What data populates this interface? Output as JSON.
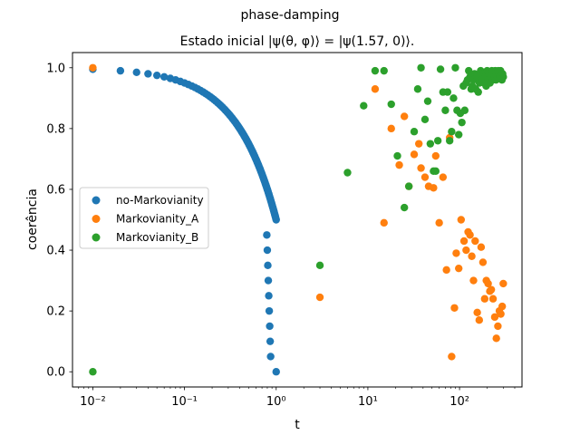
{
  "chart_data": {
    "type": "scatter",
    "suptitle": "phase-damping",
    "title": "Estado inicial |ψ(θ, φ)⟩ = |ψ(1.57, 0)⟩.",
    "xlabel": "t",
    "ylabel": "coerência",
    "xscale": "log",
    "xlim": [
      0.006,
      480
    ],
    "ylim": [
      -0.05,
      1.05
    ],
    "xticks": [
      0.01,
      0.1,
      1,
      10,
      100
    ],
    "xtick_labels": [
      "10⁻²",
      "10⁻¹",
      "10⁰",
      "10¹",
      "10²"
    ],
    "yticks": [
      0.0,
      0.2,
      0.4,
      0.6,
      0.8,
      1.0
    ],
    "ytick_labels": [
      "0.0",
      "0.2",
      "0.4",
      "0.6",
      "0.8",
      "1.0"
    ],
    "grid": false,
    "legend_position": "center-left",
    "series": [
      {
        "name": "no-Markovianity",
        "color": "#1f77b4",
        "points": [
          [
            0.01,
            0.995
          ],
          [
            0.02,
            0.99
          ],
          [
            0.03,
            0.985
          ],
          [
            0.04,
            0.98
          ],
          [
            0.05,
            0.975
          ],
          [
            0.06,
            0.97
          ],
          [
            0.07,
            0.965
          ],
          [
            0.08,
            0.96
          ],
          [
            0.09,
            0.955
          ],
          [
            0.1,
            0.95
          ],
          [
            0.11,
            0.945
          ],
          [
            0.12,
            0.94
          ],
          [
            0.13,
            0.935
          ],
          [
            0.14,
            0.93
          ],
          [
            0.15,
            0.925
          ],
          [
            0.16,
            0.92
          ],
          [
            0.17,
            0.915
          ],
          [
            0.18,
            0.91
          ],
          [
            0.19,
            0.905
          ],
          [
            0.2,
            0.9
          ],
          [
            0.21,
            0.895
          ],
          [
            0.22,
            0.89
          ],
          [
            0.23,
            0.885
          ],
          [
            0.24,
            0.88
          ],
          [
            0.25,
            0.875
          ],
          [
            0.26,
            0.87
          ],
          [
            0.27,
            0.865
          ],
          [
            0.28,
            0.86
          ],
          [
            0.29,
            0.855
          ],
          [
            0.3,
            0.85
          ],
          [
            0.31,
            0.845
          ],
          [
            0.32,
            0.84
          ],
          [
            0.33,
            0.835
          ],
          [
            0.34,
            0.83
          ],
          [
            0.35,
            0.825
          ],
          [
            0.36,
            0.82
          ],
          [
            0.37,
            0.815
          ],
          [
            0.38,
            0.81
          ],
          [
            0.39,
            0.805
          ],
          [
            0.4,
            0.8
          ],
          [
            0.41,
            0.795
          ],
          [
            0.42,
            0.79
          ],
          [
            0.43,
            0.785
          ],
          [
            0.44,
            0.78
          ],
          [
            0.45,
            0.775
          ],
          [
            0.46,
            0.77
          ],
          [
            0.47,
            0.765
          ],
          [
            0.48,
            0.76
          ],
          [
            0.49,
            0.755
          ],
          [
            0.5,
            0.75
          ],
          [
            0.51,
            0.745
          ],
          [
            0.52,
            0.74
          ],
          [
            0.53,
            0.735
          ],
          [
            0.54,
            0.73
          ],
          [
            0.55,
            0.725
          ],
          [
            0.56,
            0.72
          ],
          [
            0.57,
            0.715
          ],
          [
            0.58,
            0.71
          ],
          [
            0.59,
            0.705
          ],
          [
            0.6,
            0.7
          ],
          [
            0.61,
            0.695
          ],
          [
            0.62,
            0.69
          ],
          [
            0.63,
            0.685
          ],
          [
            0.64,
            0.68
          ],
          [
            0.65,
            0.675
          ],
          [
            0.66,
            0.67
          ],
          [
            0.67,
            0.665
          ],
          [
            0.68,
            0.66
          ],
          [
            0.69,
            0.655
          ],
          [
            0.7,
            0.65
          ],
          [
            0.71,
            0.645
          ],
          [
            0.72,
            0.64
          ],
          [
            0.73,
            0.635
          ],
          [
            0.74,
            0.63
          ],
          [
            0.75,
            0.625
          ],
          [
            0.76,
            0.62
          ],
          [
            0.77,
            0.615
          ],
          [
            0.78,
            0.61
          ],
          [
            0.79,
            0.605
          ],
          [
            0.8,
            0.6
          ],
          [
            0.81,
            0.595
          ],
          [
            0.82,
            0.59
          ],
          [
            0.83,
            0.585
          ],
          [
            0.84,
            0.58
          ],
          [
            0.85,
            0.575
          ],
          [
            0.86,
            0.57
          ],
          [
            0.87,
            0.565
          ],
          [
            0.88,
            0.56
          ],
          [
            0.89,
            0.555
          ],
          [
            0.9,
            0.55
          ],
          [
            0.91,
            0.545
          ],
          [
            0.92,
            0.54
          ],
          [
            0.93,
            0.535
          ],
          [
            0.94,
            0.53
          ],
          [
            0.95,
            0.525
          ],
          [
            0.96,
            0.52
          ],
          [
            0.97,
            0.515
          ],
          [
            0.98,
            0.51
          ],
          [
            0.99,
            0.505
          ],
          [
            1.0,
            0.5
          ],
          [
            0.79,
            0.45
          ],
          [
            0.8,
            0.4
          ],
          [
            0.81,
            0.35
          ],
          [
            0.82,
            0.3
          ],
          [
            0.83,
            0.25
          ],
          [
            0.84,
            0.2
          ],
          [
            0.85,
            0.15
          ],
          [
            0.86,
            0.1
          ],
          [
            0.87,
            0.05
          ],
          [
            1.0,
            0.0
          ]
        ]
      },
      {
        "name": "Markovianity_A",
        "color": "#ff7f0e",
        "points": [
          [
            0.01,
            1.0
          ],
          [
            3.0,
            0.245
          ],
          [
            12,
            0.93
          ],
          [
            15,
            0.49
          ],
          [
            18,
            0.8
          ],
          [
            22,
            0.68
          ],
          [
            25,
            0.84
          ],
          [
            28,
            0.61
          ],
          [
            32,
            0.715
          ],
          [
            36,
            0.75
          ],
          [
            38,
            0.67
          ],
          [
            42,
            0.64
          ],
          [
            46,
            0.61
          ],
          [
            52,
            0.605
          ],
          [
            55,
            0.71
          ],
          [
            60,
            0.49
          ],
          [
            66,
            0.64
          ],
          [
            72,
            0.335
          ],
          [
            78,
            0.77
          ],
          [
            82,
            0.05
          ],
          [
            88,
            0.21
          ],
          [
            92,
            0.39
          ],
          [
            98,
            0.34
          ],
          [
            104,
            0.5
          ],
          [
            112,
            0.43
          ],
          [
            118,
            0.4
          ],
          [
            124,
            0.46
          ],
          [
            130,
            0.45
          ],
          [
            136,
            0.38
          ],
          [
            142,
            0.3
          ],
          [
            148,
            0.43
          ],
          [
            156,
            0.195
          ],
          [
            164,
            0.17
          ],
          [
            172,
            0.41
          ],
          [
            180,
            0.36
          ],
          [
            188,
            0.24
          ],
          [
            196,
            0.3
          ],
          [
            205,
            0.29
          ],
          [
            214,
            0.265
          ],
          [
            222,
            0.27
          ],
          [
            232,
            0.24
          ],
          [
            242,
            0.18
          ],
          [
            252,
            0.11
          ],
          [
            262,
            0.15
          ],
          [
            272,
            0.2
          ],
          [
            282,
            0.19
          ],
          [
            292,
            0.215
          ],
          [
            300,
            0.29
          ]
        ]
      },
      {
        "name": "Markovianity_B",
        "color": "#2ca02c",
        "points": [
          [
            0.01,
            0.0
          ],
          [
            3.0,
            0.35
          ],
          [
            6.0,
            0.655
          ],
          [
            9.0,
            0.875
          ],
          [
            12,
            0.99
          ],
          [
            15,
            0.99
          ],
          [
            18,
            0.88
          ],
          [
            21,
            0.71
          ],
          [
            25,
            0.54
          ],
          [
            28,
            0.61
          ],
          [
            32,
            0.79
          ],
          [
            35,
            0.93
          ],
          [
            38,
            1.0
          ],
          [
            42,
            0.83
          ],
          [
            45,
            0.89
          ],
          [
            48,
            0.75
          ],
          [
            52,
            0.66
          ],
          [
            55,
            0.66
          ],
          [
            58,
            0.76
          ],
          [
            62,
            0.995
          ],
          [
            66,
            0.92
          ],
          [
            70,
            0.86
          ],
          [
            74,
            0.92
          ],
          [
            78,
            0.76
          ],
          [
            82,
            0.79
          ],
          [
            86,
            0.9
          ],
          [
            90,
            1.0
          ],
          [
            94,
            0.86
          ],
          [
            98,
            0.78
          ],
          [
            102,
            0.85
          ],
          [
            106,
            0.82
          ],
          [
            110,
            0.94
          ],
          [
            114,
            0.86
          ],
          [
            118,
            0.95
          ],
          [
            122,
            0.96
          ],
          [
            126,
            0.99
          ],
          [
            130,
            0.97
          ],
          [
            134,
            0.93
          ],
          [
            138,
            0.94
          ],
          [
            142,
            0.96
          ],
          [
            146,
            0.98
          ],
          [
            150,
            0.93
          ],
          [
            155,
            0.97
          ],
          [
            160,
            0.92
          ],
          [
            165,
            0.95
          ],
          [
            170,
            0.99
          ],
          [
            175,
            0.96
          ],
          [
            180,
            0.98
          ],
          [
            185,
            0.95
          ],
          [
            190,
            0.97
          ],
          [
            195,
            0.94
          ],
          [
            200,
            0.99
          ],
          [
            205,
            0.96
          ],
          [
            210,
            0.98
          ],
          [
            215,
            0.95
          ],
          [
            220,
            0.97
          ],
          [
            225,
            0.99
          ],
          [
            230,
            0.96
          ],
          [
            235,
            0.98
          ],
          [
            240,
            0.97
          ],
          [
            245,
            0.99
          ],
          [
            250,
            0.96
          ],
          [
            255,
            0.98
          ],
          [
            260,
            0.97
          ],
          [
            265,
            0.99
          ],
          [
            270,
            0.98
          ],
          [
            275,
            0.97
          ],
          [
            280,
            0.99
          ],
          [
            285,
            0.98
          ],
          [
            290,
            0.96
          ],
          [
            295,
            0.98
          ],
          [
            300,
            0.97
          ]
        ]
      }
    ]
  }
}
